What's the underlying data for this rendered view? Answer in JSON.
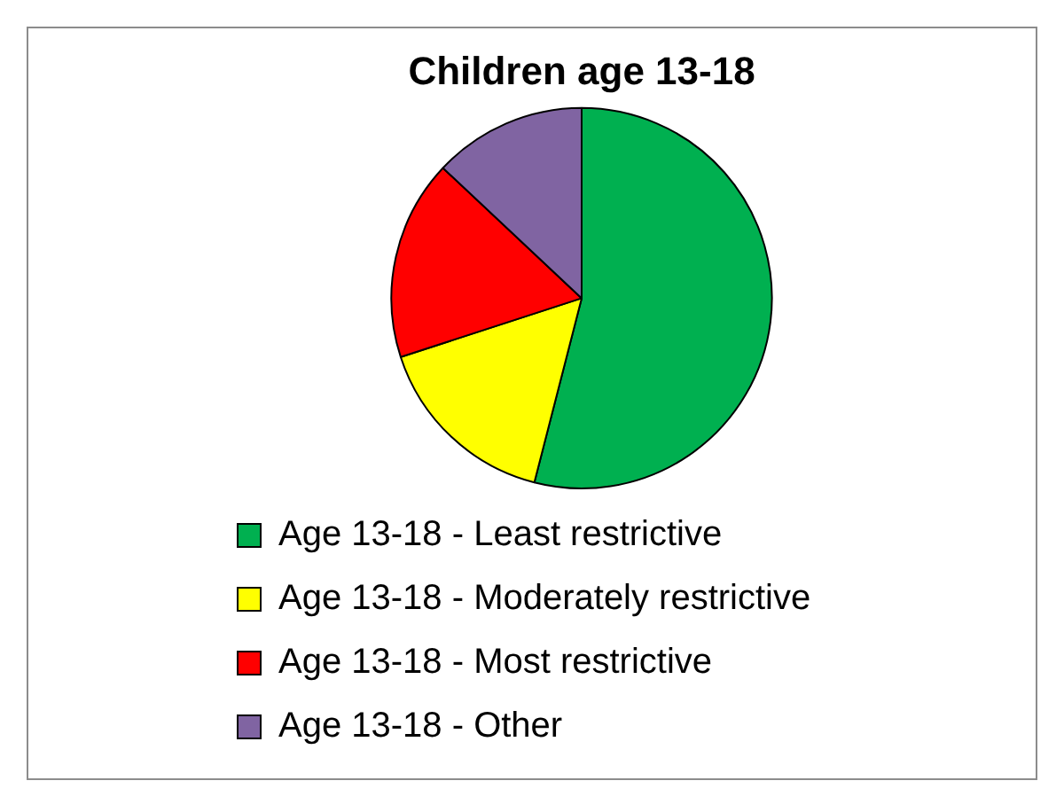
{
  "chart_data": {
    "type": "pie",
    "title": "Children age 13-18",
    "categories": [
      "Age 13-18 - Least restrictive",
      "Age 13-18 - Moderately restrictive",
      "Age 13-18 - Most restrictive",
      "Age 13-18 - Other"
    ],
    "values": [
      54,
      16,
      17,
      13
    ],
    "colors": [
      "#00b050",
      "#ffff00",
      "#ff0000",
      "#8064a2"
    ],
    "legend": "bottom"
  }
}
